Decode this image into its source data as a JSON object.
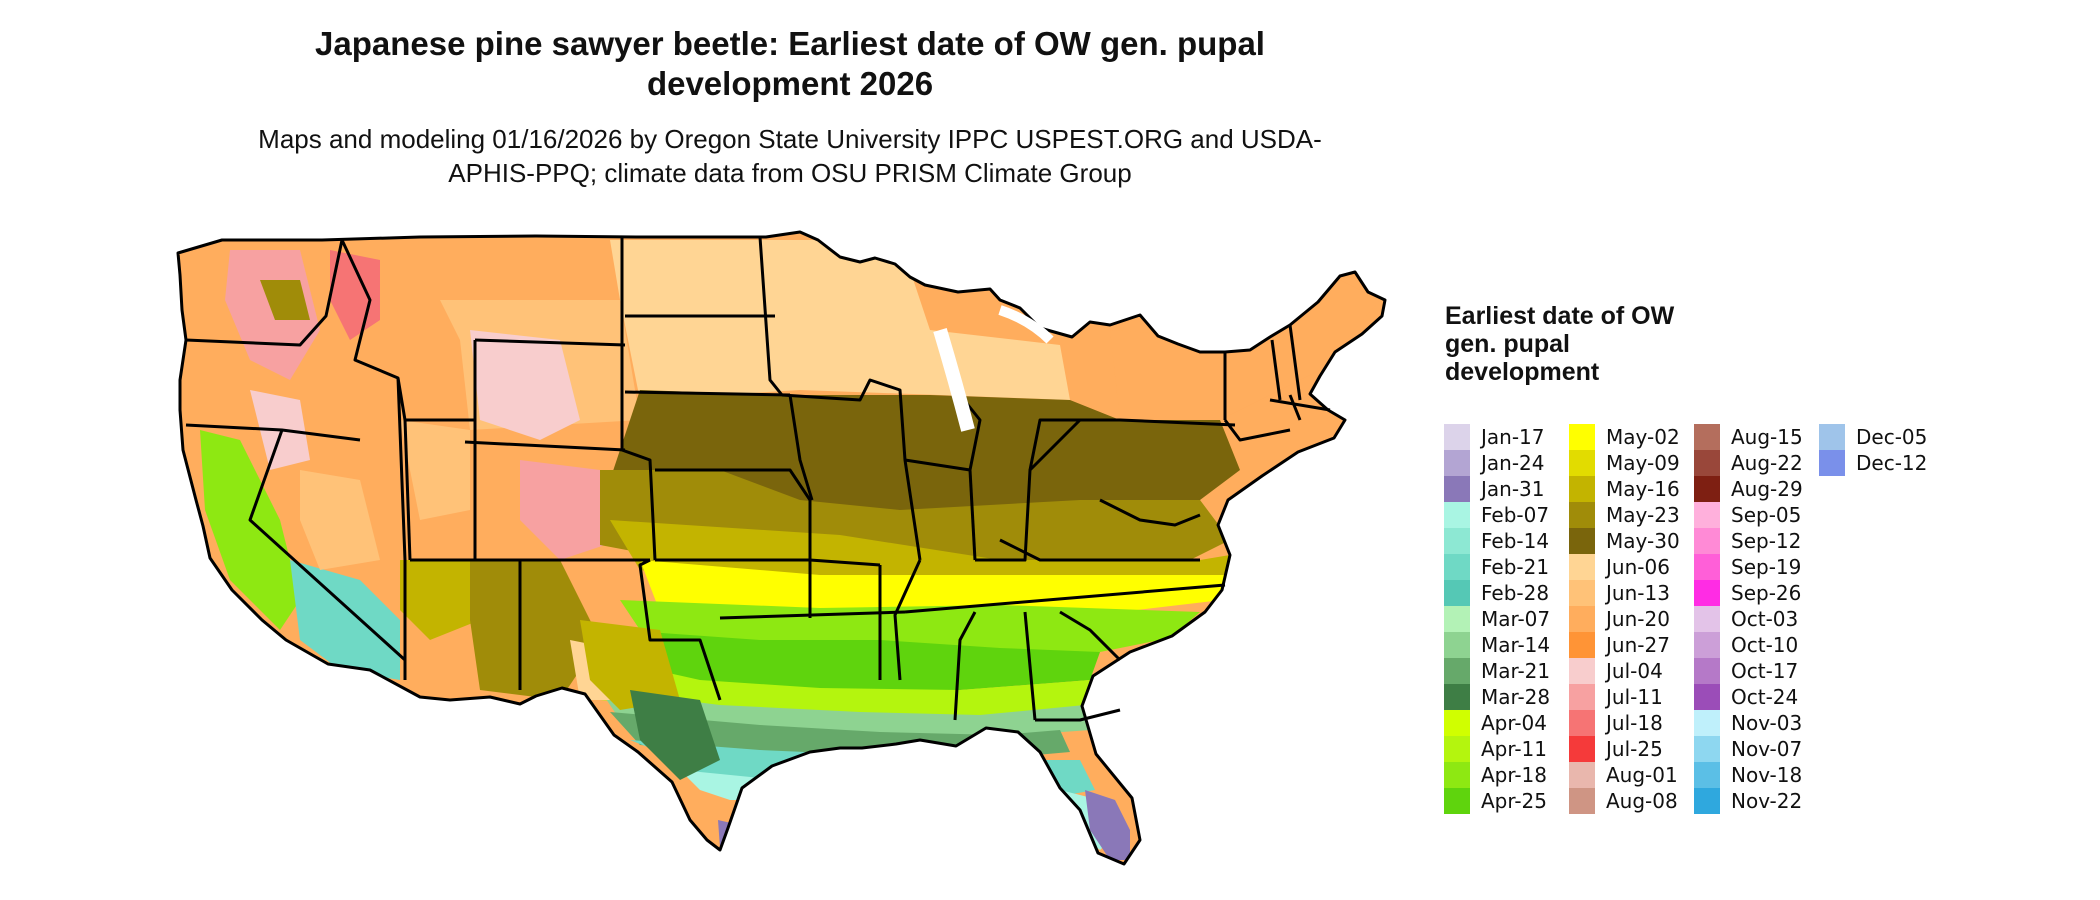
{
  "title": "Japanese pine sawyer beetle: Earliest date of OW gen. pupal development 2026",
  "subtitle": "Maps and modeling 01/16/2026 by Oregon State University IPPC USPEST.ORG and USDA-APHIS-PPQ; climate data from OSU PRISM Climate Group",
  "legend": {
    "title": "Earliest date of OW gen. pupal development",
    "columns": [
      [
        {
          "label": "Jan-17",
          "color": "#dcd3ea"
        },
        {
          "label": "Jan-24",
          "color": "#b3a5d3"
        },
        {
          "label": "Jan-31",
          "color": "#8a78b8"
        },
        {
          "label": "Feb-07",
          "color": "#a9f5e3"
        },
        {
          "label": "Feb-14",
          "color": "#8de8d3"
        },
        {
          "label": "Feb-21",
          "color": "#6fd9c5"
        },
        {
          "label": "Feb-28",
          "color": "#55c8b5"
        },
        {
          "label": "Mar-07",
          "color": "#b3f2b6"
        },
        {
          "label": "Mar-14",
          "color": "#8ed391"
        },
        {
          "label": "Mar-21",
          "color": "#66a96a"
        },
        {
          "label": "Mar-28",
          "color": "#3e7e45"
        },
        {
          "label": "Apr-04",
          "color": "#d0ff00"
        },
        {
          "label": "Apr-11",
          "color": "#b4f50e"
        },
        {
          "label": "Apr-18",
          "color": "#8ee812"
        },
        {
          "label": "Apr-25",
          "color": "#5fd40d"
        }
      ],
      [
        {
          "label": "May-02",
          "color": "#ffff00"
        },
        {
          "label": "May-09",
          "color": "#e2dc00"
        },
        {
          "label": "May-16",
          "color": "#c3b400"
        },
        {
          "label": "May-23",
          "color": "#a08c09"
        },
        {
          "label": "May-30",
          "color": "#7a650c"
        },
        {
          "label": "Jun-06",
          "color": "#ffd594"
        },
        {
          "label": "Jun-13",
          "color": "#ffc278"
        },
        {
          "label": "Jun-20",
          "color": "#ffad5d"
        },
        {
          "label": "Jun-27",
          "color": "#ff9436"
        },
        {
          "label": "Jul-04",
          "color": "#f8cdcd"
        },
        {
          "label": "Jul-11",
          "color": "#f7a1a1"
        },
        {
          "label": "Jul-18",
          "color": "#f67474"
        },
        {
          "label": "Jul-25",
          "color": "#f53a3a"
        },
        {
          "label": "Aug-01",
          "color": "#e9b7ad"
        },
        {
          "label": "Aug-08",
          "color": "#cf9584"
        }
      ],
      [
        {
          "label": "Aug-15",
          "color": "#b46e5d"
        },
        {
          "label": "Aug-22",
          "color": "#99473a"
        },
        {
          "label": "Aug-29",
          "color": "#7e1f12"
        },
        {
          "label": "Sep-05",
          "color": "#ffb0dc"
        },
        {
          "label": "Sep-12",
          "color": "#ff8ad6"
        },
        {
          "label": "Sep-19",
          "color": "#ff5fd8"
        },
        {
          "label": "Sep-26",
          "color": "#ff2ce4"
        },
        {
          "label": "Oct-03",
          "color": "#e3c3e8"
        },
        {
          "label": "Oct-10",
          "color": "#cc9fd8"
        },
        {
          "label": "Oct-17",
          "color": "#b579c8"
        },
        {
          "label": "Oct-24",
          "color": "#9b4db8"
        },
        {
          "label": "Nov-03",
          "color": "#bff0fb"
        },
        {
          "label": "Nov-07",
          "color": "#8ed7f0"
        },
        {
          "label": "Nov-18",
          "color": "#5bbfe6"
        },
        {
          "label": "Nov-22",
          "color": "#2fa8de"
        }
      ],
      [
        {
          "label": "Dec-05",
          "color": "#9fc4ea"
        },
        {
          "label": "Dec-12",
          "color": "#7a90ea"
        }
      ]
    ]
  }
}
